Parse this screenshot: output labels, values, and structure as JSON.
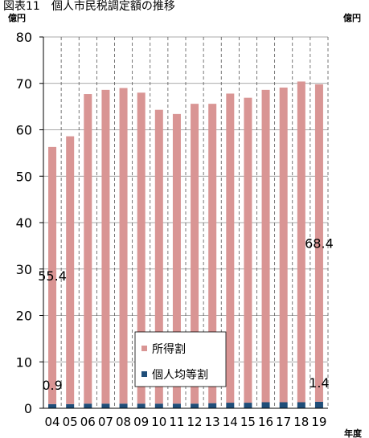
{
  "chart_data": {
    "type": "bar",
    "stacked": true,
    "title": "図表11　個人市民税調定額の推移",
    "ylabel_left": "億円",
    "ylabel_right": "億円",
    "xlabel": "年度",
    "ylim": [
      0,
      80
    ],
    "yticks": [
      0,
      10,
      20,
      30,
      40,
      50,
      60,
      70,
      80
    ],
    "grid": "horizontal-solid, vertical-dashed",
    "legend_placement": "bottom-center",
    "categories": [
      "04",
      "05",
      "06",
      "07",
      "08",
      "09",
      "10",
      "11",
      "12",
      "13",
      "14",
      "15",
      "16",
      "17",
      "18",
      "19"
    ],
    "series": [
      {
        "name": "個人均等割",
        "color": "#1f4e79",
        "values": [
          0.9,
          0.9,
          1.0,
          1.0,
          1.0,
          1.0,
          1.0,
          1.0,
          1.0,
          1.1,
          1.2,
          1.2,
          1.3,
          1.3,
          1.3,
          1.4
        ]
      },
      {
        "name": "所得割",
        "color": "#d99594",
        "values": [
          55.4,
          57.7,
          66.7,
          67.6,
          68.0,
          67.0,
          63.3,
          62.4,
          64.6,
          64.5,
          66.6,
          65.7,
          67.3,
          67.8,
          69.1,
          68.4
        ]
      }
    ],
    "data_labels": [
      {
        "text": "55.4",
        "category": "04",
        "series": "所得割"
      },
      {
        "text": "0.9",
        "category": "04",
        "series": "個人均等割"
      },
      {
        "text": "68.4",
        "category": "19",
        "series": "所得割"
      },
      {
        "text": "1.4",
        "category": "19",
        "series": "個人均等割"
      }
    ]
  }
}
